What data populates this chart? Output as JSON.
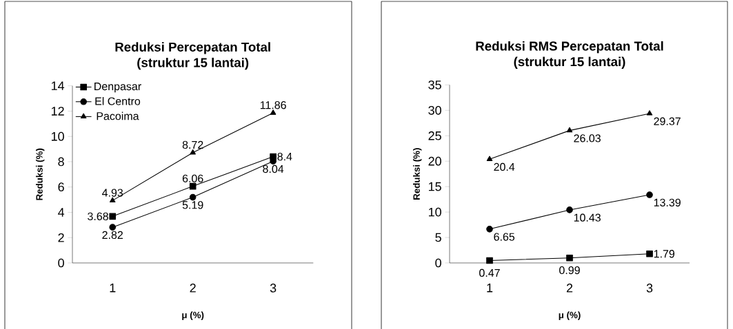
{
  "chart_data": [
    {
      "type": "line",
      "title": "Reduksi Percepatan Total (struktur 15 lantai)",
      "xlabel": "**μ** (%)",
      "ylabel": "Reduksi (%)",
      "categories": [
        "1",
        "2",
        "3"
      ],
      "ylim": [
        0,
        14
      ],
      "yticks": [
        0,
        2,
        4,
        6,
        8,
        10,
        12,
        14
      ],
      "legend": "top left",
      "data_labels": true,
      "series": [
        {
          "name": "Denpasar",
          "color": "#000000",
          "marker": "square",
          "values": [
            3.68,
            6.06,
            8.4
          ]
        },
        {
          "name": "El Centro",
          "color": "#000000",
          "marker": "circle",
          "values": [
            2.82,
            5.19,
            8.04
          ]
        },
        {
          "name": "Pacoima",
          "color": "#000000",
          "marker": "triangle",
          "values": [
            4.93,
            8.72,
            11.86
          ]
        }
      ]
    },
    {
      "type": "line",
      "title": "Reduksi RMS Percepatan Total (struktur 15 lantai)",
      "xlabel": "**μ** (%)",
      "ylabel": "Reduksi (%)",
      "categories": [
        "1",
        "2",
        "3"
      ],
      "ylim": [
        0,
        35
      ],
      "yticks": [
        0,
        5,
        10,
        15,
        20,
        25,
        30,
        35
      ],
      "data_labels": true,
      "series": [
        {
          "color": "#000000",
          "marker": "square",
          "values": [
            0.47,
            0.99,
            1.79
          ]
        },
        {
          "color": "#000000",
          "marker": "circle",
          "values": [
            6.65,
            10.43,
            13.39
          ]
        },
        {
          "color": "#000000",
          "marker": "triangle",
          "values": [
            20.4,
            26.03,
            29.37
          ]
        }
      ]
    }
  ]
}
